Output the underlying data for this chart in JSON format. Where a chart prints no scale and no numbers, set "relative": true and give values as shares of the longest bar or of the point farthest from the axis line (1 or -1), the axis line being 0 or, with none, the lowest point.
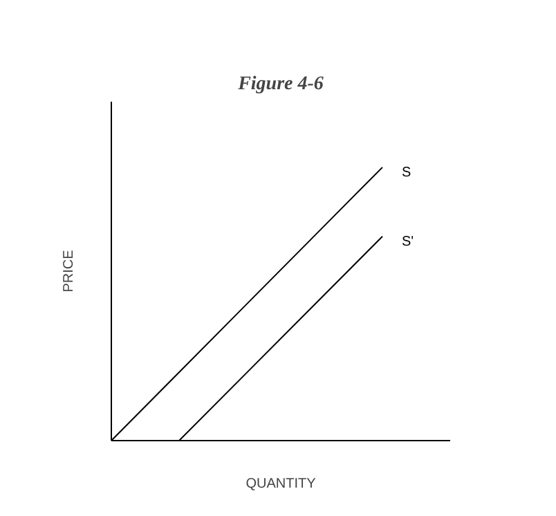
{
  "chart_data": {
    "type": "line",
    "title": "Figure 4-6",
    "xlabel": "QUANTITY",
    "ylabel": "PRICE",
    "relative": true,
    "categories": [
      null,
      null,
      null,
      null,
      null,
      null
    ],
    "series": [
      {
        "name": "S",
        "color": "#000000",
        "values": [
          0,
          0.25,
          0.5,
          0.75,
          1,
          null
        ]
      },
      {
        "name": "S'",
        "color": "#000000",
        "values": [
          null,
          0,
          0.249,
          0.498,
          0.747,
          null
        ]
      }
    ],
    "grid": false,
    "legend": false,
    "marker": "none",
    "line_style": "solid"
  }
}
